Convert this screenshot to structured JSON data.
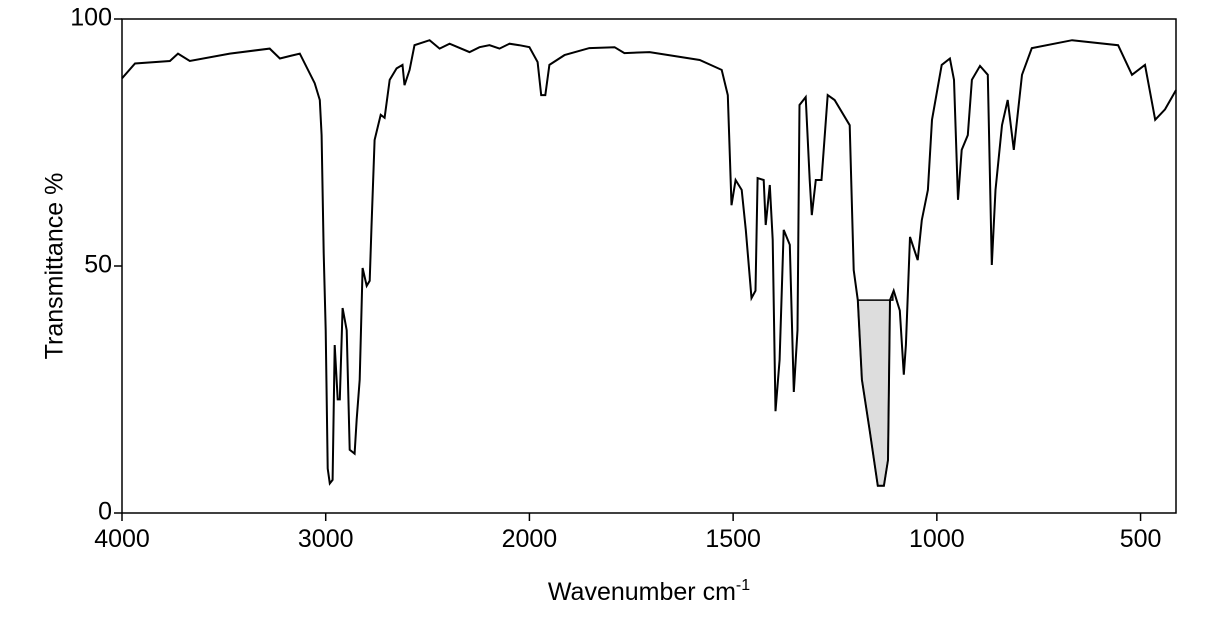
{
  "chart_data": {
    "type": "line",
    "xlabel": "Wavenumber cm",
    "xlabel_superscript": "-1",
    "ylabel": "Transmittance %",
    "xlim": [
      4000,
      413
    ],
    "xticks": [
      4000,
      3000,
      2000,
      1500,
      1000,
      500
    ],
    "x_scale_change": {
      "at": 2000,
      "factor": 2
    },
    "ylim": [
      0,
      100
    ],
    "yticks": [
      0,
      50,
      100
    ],
    "color": "#000000",
    "highlight": {
      "from": 1194,
      "to": 1108,
      "baseline": 43.1,
      "color": "#dddddd"
    },
    "x": [
      4000,
      3936,
      3765,
      3725,
      3667,
      3471,
      3275,
      3225,
      3176,
      3127,
      3054,
      3029,
      3020,
      3010,
      3000,
      2990,
      2980,
      2966,
      2956,
      2941,
      2931,
      2917,
      2897,
      2882,
      2858,
      2848,
      2833,
      2819,
      2799,
      2784,
      2775,
      2760,
      2730,
      2711,
      2686,
      2652,
      2623,
      2613,
      2588,
      2564,
      2490,
      2441,
      2392,
      2294,
      2245,
      2196,
      2147,
      2098,
      2049,
      2000,
      1980,
      1971,
      1961,
      1951,
      1914,
      1853,
      1791,
      1767,
      1705,
      1582,
      1528,
      1513,
      1504,
      1494,
      1479,
      1469,
      1455,
      1445,
      1440,
      1425,
      1420,
      1410,
      1403,
      1396,
      1386,
      1376,
      1361,
      1351,
      1342,
      1337,
      1322,
      1312,
      1307,
      1297,
      1283,
      1268,
      1251,
      1214,
      1204,
      1194,
      1184,
      1165,
      1145,
      1130,
      1120,
      1115,
      1106,
      1091,
      1081,
      1076,
      1066,
      1047,
      1037,
      1022,
      1012,
      988,
      968,
      958,
      948,
      939,
      924,
      914,
      894,
      875,
      865,
      856,
      840,
      826,
      811,
      791,
      767,
      668,
      555,
      521,
      489,
      464,
      440,
      413
    ],
    "values": [
      88,
      91,
      91.5,
      93,
      91.5,
      93,
      94,
      92,
      92.5,
      93,
      87,
      83.6,
      76.5,
      52.6,
      37,
      9,
      6,
      6.7,
      34,
      23,
      23,
      41.5,
      37,
      12.8,
      12,
      19,
      27,
      49.6,
      46,
      47,
      58,
      75.5,
      80.6,
      80,
      87.7,
      90,
      90.7,
      86.6,
      89.7,
      94.7,
      95.7,
      94,
      95,
      93.3,
      94.3,
      94.7,
      94,
      95,
      94.7,
      94.3,
      91.3,
      84.6,
      84.6,
      90.7,
      92.7,
      94.1,
      94.3,
      93.1,
      93.3,
      91.7,
      89.7,
      84.6,
      62.3,
      67.4,
      65.4,
      57.3,
      43.5,
      45,
      67.8,
      67.4,
      58.3,
      66.4,
      55.3,
      20.6,
      31,
      57.3,
      54.3,
      24.5,
      37,
      82.6,
      84.2,
      67.4,
      60.3,
      67.4,
      67.4,
      84.6,
      83.6,
      78.5,
      49.2,
      43.1,
      27,
      16.8,
      5.5,
      5.5,
      10.7,
      43.1,
      45,
      41,
      28,
      34,
      55.9,
      51.2,
      59.3,
      65.4,
      79.6,
      90.7,
      92,
      87.7,
      63.4,
      73.5,
      76.5,
      87.7,
      90.5,
      88.7,
      50.2,
      65.4,
      78.5,
      83.6,
      73.5,
      88.7,
      94.1,
      95.7,
      94.7,
      88.7,
      90.7,
      79.6,
      81.7,
      85.6
    ]
  }
}
